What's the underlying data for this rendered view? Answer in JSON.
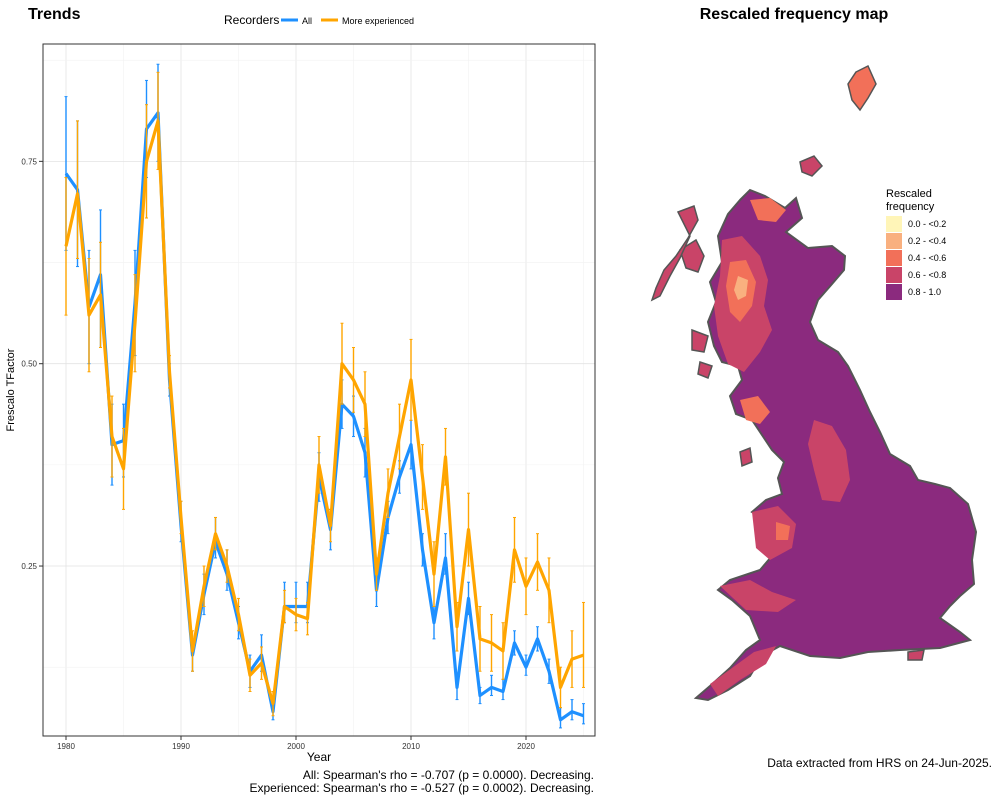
{
  "chart_data": [
    {
      "type": "line",
      "title": "Trends",
      "xlabel": "Year",
      "ylabel": "Frescalo TFactor",
      "xlim": [
        1978,
        2026
      ],
      "ylim": [
        0.04,
        0.895
      ],
      "x_ticks": [
        1980,
        1990,
        2000,
        2010,
        2020
      ],
      "y_ticks": [
        0.25,
        0.5,
        0.75
      ],
      "y_tick_labels": [
        "0.25",
        "0.50",
        "0.75"
      ],
      "grid": true,
      "legend_title": "Recorders",
      "legend_position": "top",
      "series": [
        {
          "name": "All",
          "color": "#1e90ff",
          "x": [
            1980,
            1981,
            1982,
            1983,
            1984,
            1985,
            1986,
            1987,
            1988,
            1989,
            1990,
            1991,
            1992,
            1993,
            1994,
            1995,
            1996,
            1997,
            1998,
            1999,
            2000,
            2001,
            2002,
            2003,
            2004,
            2005,
            2006,
            2007,
            2008,
            2009,
            2010,
            2011,
            2012,
            2013,
            2014,
            2015,
            2016,
            2017,
            2018,
            2019,
            2020,
            2021,
            2022,
            2023,
            2024,
            2025
          ],
          "y": [
            0.735,
            0.715,
            0.57,
            0.61,
            0.4,
            0.405,
            0.575,
            0.79,
            0.81,
            0.48,
            0.3,
            0.14,
            0.215,
            0.28,
            0.24,
            0.18,
            0.12,
            0.14,
            0.07,
            0.2,
            0.2,
            0.2,
            0.36,
            0.295,
            0.45,
            0.435,
            0.39,
            0.22,
            0.31,
            0.36,
            0.4,
            0.27,
            0.18,
            0.26,
            0.1,
            0.21,
            0.09,
            0.1,
            0.095,
            0.155,
            0.125,
            0.16,
            0.12,
            0.06,
            0.07,
            0.065
          ],
          "err_low": [
            0.64,
            0.62,
            0.5,
            0.52,
            0.35,
            0.36,
            0.51,
            0.73,
            0.75,
            0.46,
            0.28,
            0.12,
            0.19,
            0.26,
            0.22,
            0.16,
            0.1,
            0.12,
            0.06,
            0.18,
            0.18,
            0.18,
            0.33,
            0.27,
            0.42,
            0.41,
            0.36,
            0.2,
            0.29,
            0.34,
            0.37,
            0.25,
            0.16,
            0.24,
            0.085,
            0.19,
            0.08,
            0.09,
            0.085,
            0.14,
            0.115,
            0.145,
            0.105,
            0.05,
            0.06,
            0.055
          ],
          "err_high": [
            0.83,
            0.8,
            0.64,
            0.69,
            0.45,
            0.45,
            0.64,
            0.85,
            0.87,
            0.5,
            0.33,
            0.16,
            0.24,
            0.31,
            0.27,
            0.2,
            0.14,
            0.165,
            0.085,
            0.23,
            0.23,
            0.23,
            0.39,
            0.32,
            0.48,
            0.46,
            0.42,
            0.24,
            0.33,
            0.38,
            0.43,
            0.29,
            0.2,
            0.29,
            0.115,
            0.23,
            0.1,
            0.115,
            0.11,
            0.17,
            0.14,
            0.175,
            0.135,
            0.075,
            0.085,
            0.08
          ]
        },
        {
          "name": "More experienced",
          "color": "#ffa500",
          "x": [
            1980,
            1981,
            1982,
            1983,
            1984,
            1985,
            1986,
            1987,
            1988,
            1989,
            1990,
            1991,
            1992,
            1993,
            1994,
            1995,
            1996,
            1997,
            1998,
            1999,
            2000,
            2001,
            2002,
            2003,
            2004,
            2005,
            2006,
            2007,
            2008,
            2009,
            2010,
            2011,
            2012,
            2013,
            2014,
            2015,
            2016,
            2017,
            2018,
            2019,
            2020,
            2021,
            2022,
            2023,
            2024,
            2025
          ],
          "y": [
            0.645,
            0.71,
            0.56,
            0.585,
            0.41,
            0.37,
            0.55,
            0.75,
            0.8,
            0.49,
            0.31,
            0.145,
            0.225,
            0.29,
            0.25,
            0.19,
            0.115,
            0.13,
            0.08,
            0.2,
            0.19,
            0.185,
            0.375,
            0.3,
            0.5,
            0.48,
            0.45,
            0.24,
            0.34,
            0.41,
            0.48,
            0.36,
            0.24,
            0.385,
            0.175,
            0.295,
            0.16,
            0.155,
            0.145,
            0.27,
            0.225,
            0.255,
            0.22,
            0.1,
            0.135,
            0.14
          ],
          "err_low": [
            0.56,
            0.63,
            0.49,
            0.52,
            0.36,
            0.32,
            0.49,
            0.68,
            0.74,
            0.47,
            0.29,
            0.12,
            0.2,
            0.27,
            0.23,
            0.17,
            0.095,
            0.11,
            0.065,
            0.18,
            0.17,
            0.165,
            0.34,
            0.28,
            0.45,
            0.44,
            0.41,
            0.22,
            0.31,
            0.37,
            0.43,
            0.32,
            0.2,
            0.35,
            0.145,
            0.25,
            0.12,
            0.12,
            0.11,
            0.23,
            0.19,
            0.22,
            0.18,
            0.075,
            0.1,
            0.1
          ],
          "err_high": [
            0.73,
            0.8,
            0.63,
            0.65,
            0.46,
            0.42,
            0.61,
            0.82,
            0.86,
            0.51,
            0.33,
            0.17,
            0.25,
            0.31,
            0.27,
            0.21,
            0.135,
            0.15,
            0.095,
            0.22,
            0.21,
            0.205,
            0.41,
            0.32,
            0.55,
            0.52,
            0.49,
            0.26,
            0.37,
            0.45,
            0.53,
            0.4,
            0.28,
            0.42,
            0.205,
            0.34,
            0.2,
            0.19,
            0.18,
            0.31,
            0.26,
            0.29,
            0.26,
            0.125,
            0.17,
            0.205
          ]
        }
      ],
      "annotations": [
        "All: Spearman's rho = -0.707 (p = 0.0000). Decreasing.",
        "Experienced: Spearman's rho = -0.527 (p = 0.0002). Decreasing."
      ]
    },
    {
      "type": "map",
      "title": "Rescaled frequency map",
      "legend_title": "Rescaled frequency",
      "legend": [
        {
          "label": "0.0 - <0.2",
          "color": "#fff5b8"
        },
        {
          "label": "0.2 - <0.4",
          "color": "#f9b07f"
        },
        {
          "label": "0.4 - <0.6",
          "color": "#f27059"
        },
        {
          "label": "0.6 - <0.8",
          "color": "#c94468"
        },
        {
          "label": "0.8 - 1.0",
          "color": "#8b2a7e"
        }
      ],
      "caption": "Data extracted from HRS on 24-Jun-2025."
    }
  ]
}
